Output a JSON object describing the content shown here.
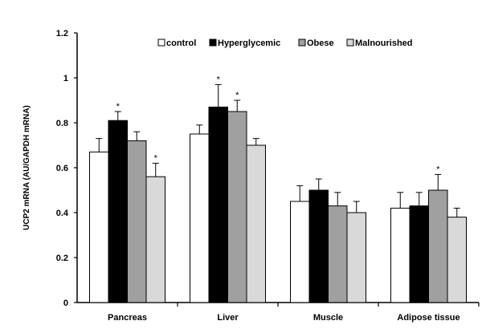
{
  "chart_data": {
    "type": "bar",
    "title": "",
    "xlabel": "",
    "ylabel": "UCP2 mRNA (AU/GAPDH mRNA)",
    "ylim": [
      0,
      1.2
    ],
    "yticks": [
      "0",
      "0.2",
      "0.4",
      "0.6",
      "0.8",
      "1",
      "1.2"
    ],
    "ytick_values": [
      0,
      0.2,
      0.4,
      0.6,
      0.8,
      1.0,
      1.2
    ],
    "grid": false,
    "legend_position": "top-center",
    "categories": [
      "Pancreas",
      "Liver",
      "Muscle",
      "Adipose tissue"
    ],
    "series": [
      {
        "name": "control",
        "color": "#ffffff",
        "values": [
          0.67,
          0.75,
          0.45,
          0.42
        ],
        "errors": [
          0.06,
          0.04,
          0.07,
          0.07
        ],
        "significant": [
          false,
          false,
          false,
          false
        ]
      },
      {
        "name": "Hyperglycemic",
        "color": "#000000",
        "values": [
          0.81,
          0.87,
          0.5,
          0.43
        ],
        "errors": [
          0.04,
          0.1,
          0.05,
          0.06
        ],
        "significant": [
          true,
          true,
          false,
          false
        ]
      },
      {
        "name": "Obese",
        "color": "#a0a0a0",
        "values": [
          0.72,
          0.85,
          0.43,
          0.5
        ],
        "errors": [
          0.04,
          0.05,
          0.06,
          0.07
        ],
        "significant": [
          false,
          true,
          false,
          true
        ]
      },
      {
        "name": "Malnourished",
        "color": "#d9d9d9",
        "values": [
          0.56,
          0.7,
          0.4,
          0.38
        ],
        "errors": [
          0.06,
          0.03,
          0.05,
          0.04
        ],
        "significant": [
          true,
          false,
          false,
          false
        ]
      }
    ],
    "significance_marker": "*"
  }
}
